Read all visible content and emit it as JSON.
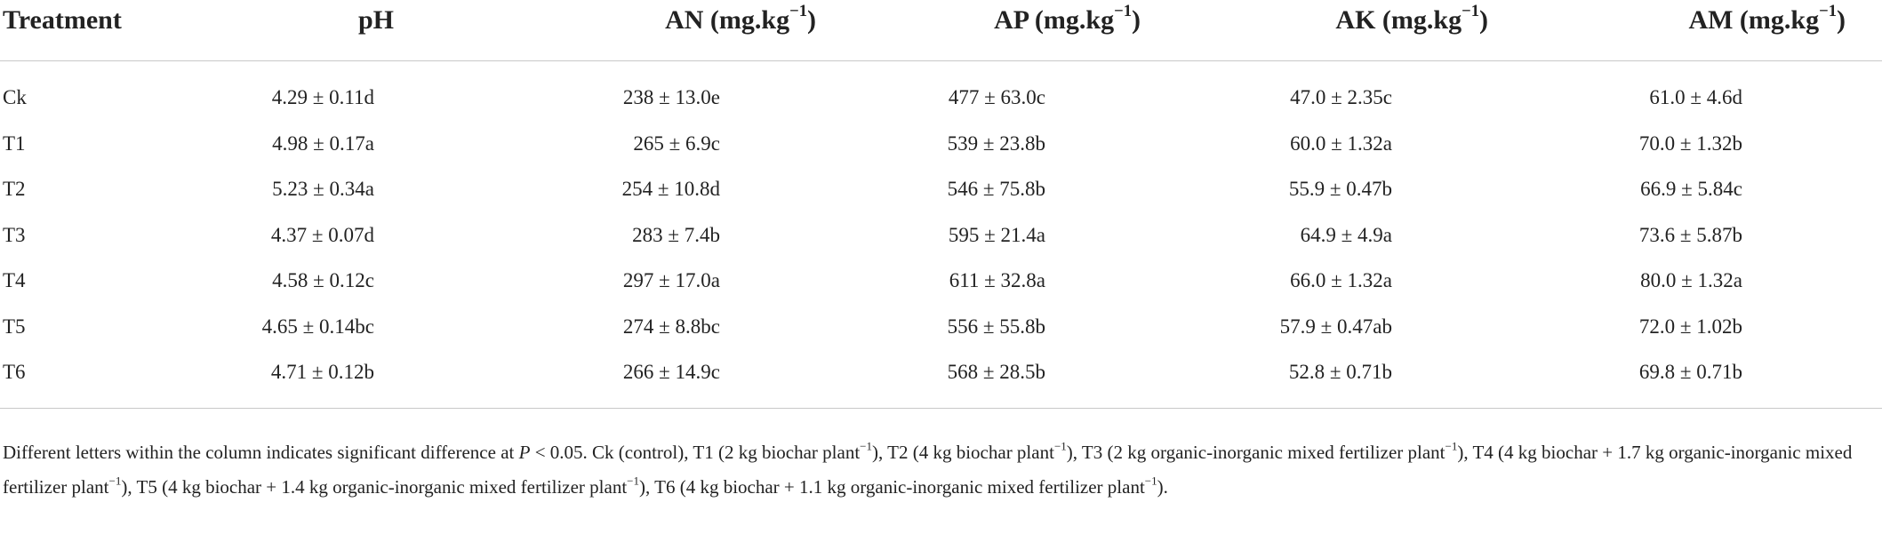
{
  "table": {
    "header": [
      [
        {
          "text": "Treatment"
        }
      ],
      [
        {
          "text": "pH"
        }
      ],
      [
        {
          "text": "AN (mg.kg"
        },
        {
          "text": "−1",
          "sup": true
        },
        {
          "text": ")"
        }
      ],
      [
        {
          "text": "AP (mg.kg"
        },
        {
          "text": "−1",
          "sup": true
        },
        {
          "text": ")"
        }
      ],
      [
        {
          "text": "AK (mg.kg"
        },
        {
          "text": "−1",
          "sup": true
        },
        {
          "text": ")"
        }
      ],
      [
        {
          "text": "AM (mg.kg"
        },
        {
          "text": "−1",
          "sup": true
        },
        {
          "text": ")"
        }
      ]
    ],
    "rows": [
      [
        "Ck",
        "4.29 ± 0.11d",
        "238 ± 13.0e",
        "477 ± 63.0c",
        "47.0 ± 2.35c",
        "61.0 ± 4.6d"
      ],
      [
        "T1",
        "4.98 ± 0.17a",
        "265 ± 6.9c",
        "539 ± 23.8b",
        "60.0 ± 1.32a",
        "70.0 ± 1.32b"
      ],
      [
        "T2",
        "5.23 ± 0.34a",
        "254 ± 10.8d",
        "546 ± 75.8b",
        "55.9 ± 0.47b",
        "66.9 ± 5.84c"
      ],
      [
        "T3",
        "4.37 ± 0.07d",
        "283 ± 7.4b",
        "595 ± 21.4a",
        "64.9 ± 4.9a",
        "73.6 ± 5.87b"
      ],
      [
        "T4",
        "4.58 ± 0.12c",
        "297 ± 17.0a",
        "611 ± 32.8a",
        "66.0 ± 1.32a",
        "80.0 ± 1.32a"
      ],
      [
        "T5",
        "4.65 ± 0.14bc",
        "274 ± 8.8bc",
        "556 ± 55.8b",
        "57.9 ± 0.47ab",
        "72.0 ± 1.02b"
      ],
      [
        "T6",
        "4.71 ± 0.12b",
        "266 ± 14.9c",
        "568 ± 28.5b",
        "52.8 ± 0.71b",
        "69.8 ± 0.71b"
      ]
    ],
    "footnote": [
      {
        "text": "Different letters within the column indicates significant difference at "
      },
      {
        "text": "P",
        "italic": true
      },
      {
        "text": " < 0.05. Ck (control), T1 (2 kg biochar plant"
      },
      {
        "text": "−1",
        "sup": true
      },
      {
        "text": "), T2 (4 kg biochar plant"
      },
      {
        "text": "−1",
        "sup": true
      },
      {
        "text": "), T3 (2 kg organic-inorganic mixed fertilizer plant"
      },
      {
        "text": "−1",
        "sup": true
      },
      {
        "text": "), T4 (4 kg biochar + 1.7 kg organic-inorganic mixed fertilizer plant"
      },
      {
        "text": "−1",
        "sup": true
      },
      {
        "text": "), T5 (4 kg biochar + 1.4 kg organic-inorganic mixed fertilizer plant"
      },
      {
        "text": "−1",
        "sup": true
      },
      {
        "text": "), T6 (4 kg biochar + 1.1 kg organic-inorganic mixed fertilizer plant"
      },
      {
        "text": "−1",
        "sup": true
      },
      {
        "text": ")."
      }
    ]
  }
}
